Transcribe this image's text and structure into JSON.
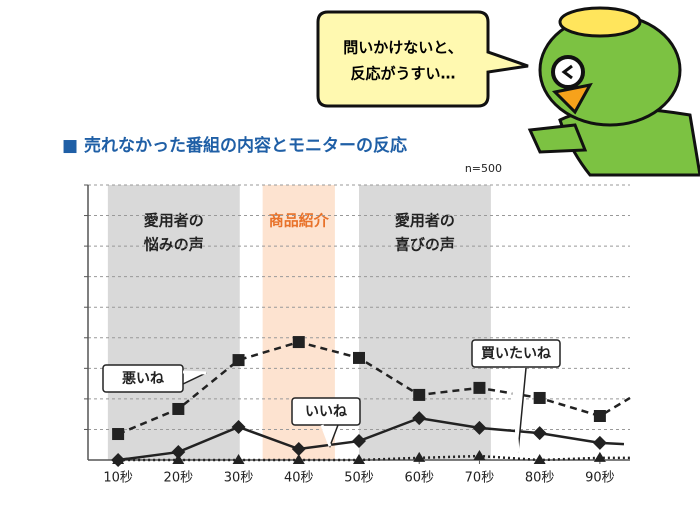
{
  "chart_data": {
    "type": "line",
    "title": "■ 売れなかった番組の内容とモニターの反応",
    "subtitle": "n=500",
    "speech": [
      "問いかけないと、",
      "反応がうすい…"
    ],
    "bands": [
      {
        "lines": [
          "愛用者の",
          "悩みの声"
        ],
        "start": 8.3,
        "end": 30.2,
        "color": "#d9d9d9",
        "text_color": "#222222"
      },
      {
        "lines": [
          "商品紹介"
        ],
        "start": 34.0,
        "end": 46.0,
        "color": "#fde3d0",
        "text_color": "#e8722a"
      },
      {
        "lines": [
          "愛用者の",
          "喜びの声"
        ],
        "start": 50.0,
        "end": 71.9,
        "color": "#d9d9d9",
        "text_color": "#222222"
      }
    ],
    "xlim": [
      5,
      95
    ],
    "xticks": [
      {
        "value": 10,
        "label": "10秒"
      },
      {
        "value": 20,
        "label": "20秒"
      },
      {
        "value": 30,
        "label": "30秒"
      },
      {
        "value": 40,
        "label": "40秒"
      },
      {
        "value": 50,
        "label": "50秒"
      },
      {
        "value": 60,
        "label": "60秒"
      },
      {
        "value": 70,
        "label": "70秒"
      },
      {
        "value": 80,
        "label": "80秒"
      },
      {
        "value": 90,
        "label": "90秒"
      }
    ],
    "ylim": [
      0,
      9
    ],
    "yticks": [
      1,
      2,
      3,
      4,
      5,
      6,
      7,
      8,
      9
    ],
    "grid": true,
    "series": [
      {
        "name": "悪いね",
        "color": "#222222",
        "marker": "square",
        "dash": "dashed",
        "x": [
          10,
          20,
          30,
          40,
          50,
          60,
          70,
          80,
          90,
          95
        ],
        "values": [
          0.85,
          1.67,
          3.27,
          3.86,
          3.34,
          2.13,
          2.36,
          2.03,
          1.44,
          2.03
        ]
      },
      {
        "name": "いいね",
        "color": "#222222",
        "marker": "diamond",
        "dash": "solid",
        "x": [
          10,
          20,
          30,
          40,
          50,
          60,
          70,
          80,
          90,
          94
        ],
        "values": [
          0,
          0.26,
          1.08,
          0.36,
          0.62,
          1.37,
          1.05,
          0.88,
          0.56,
          0.52
        ]
      },
      {
        "name": "買いたいね",
        "color": "#222222",
        "marker": "triangle",
        "dash": "dotted",
        "x": [
          10,
          20,
          30,
          40,
          50,
          60,
          70,
          80,
          90,
          95
        ],
        "values": [
          0,
          0,
          0,
          0,
          0,
          0.07,
          0.13,
          0,
          0.07,
          0.07
        ]
      }
    ]
  }
}
